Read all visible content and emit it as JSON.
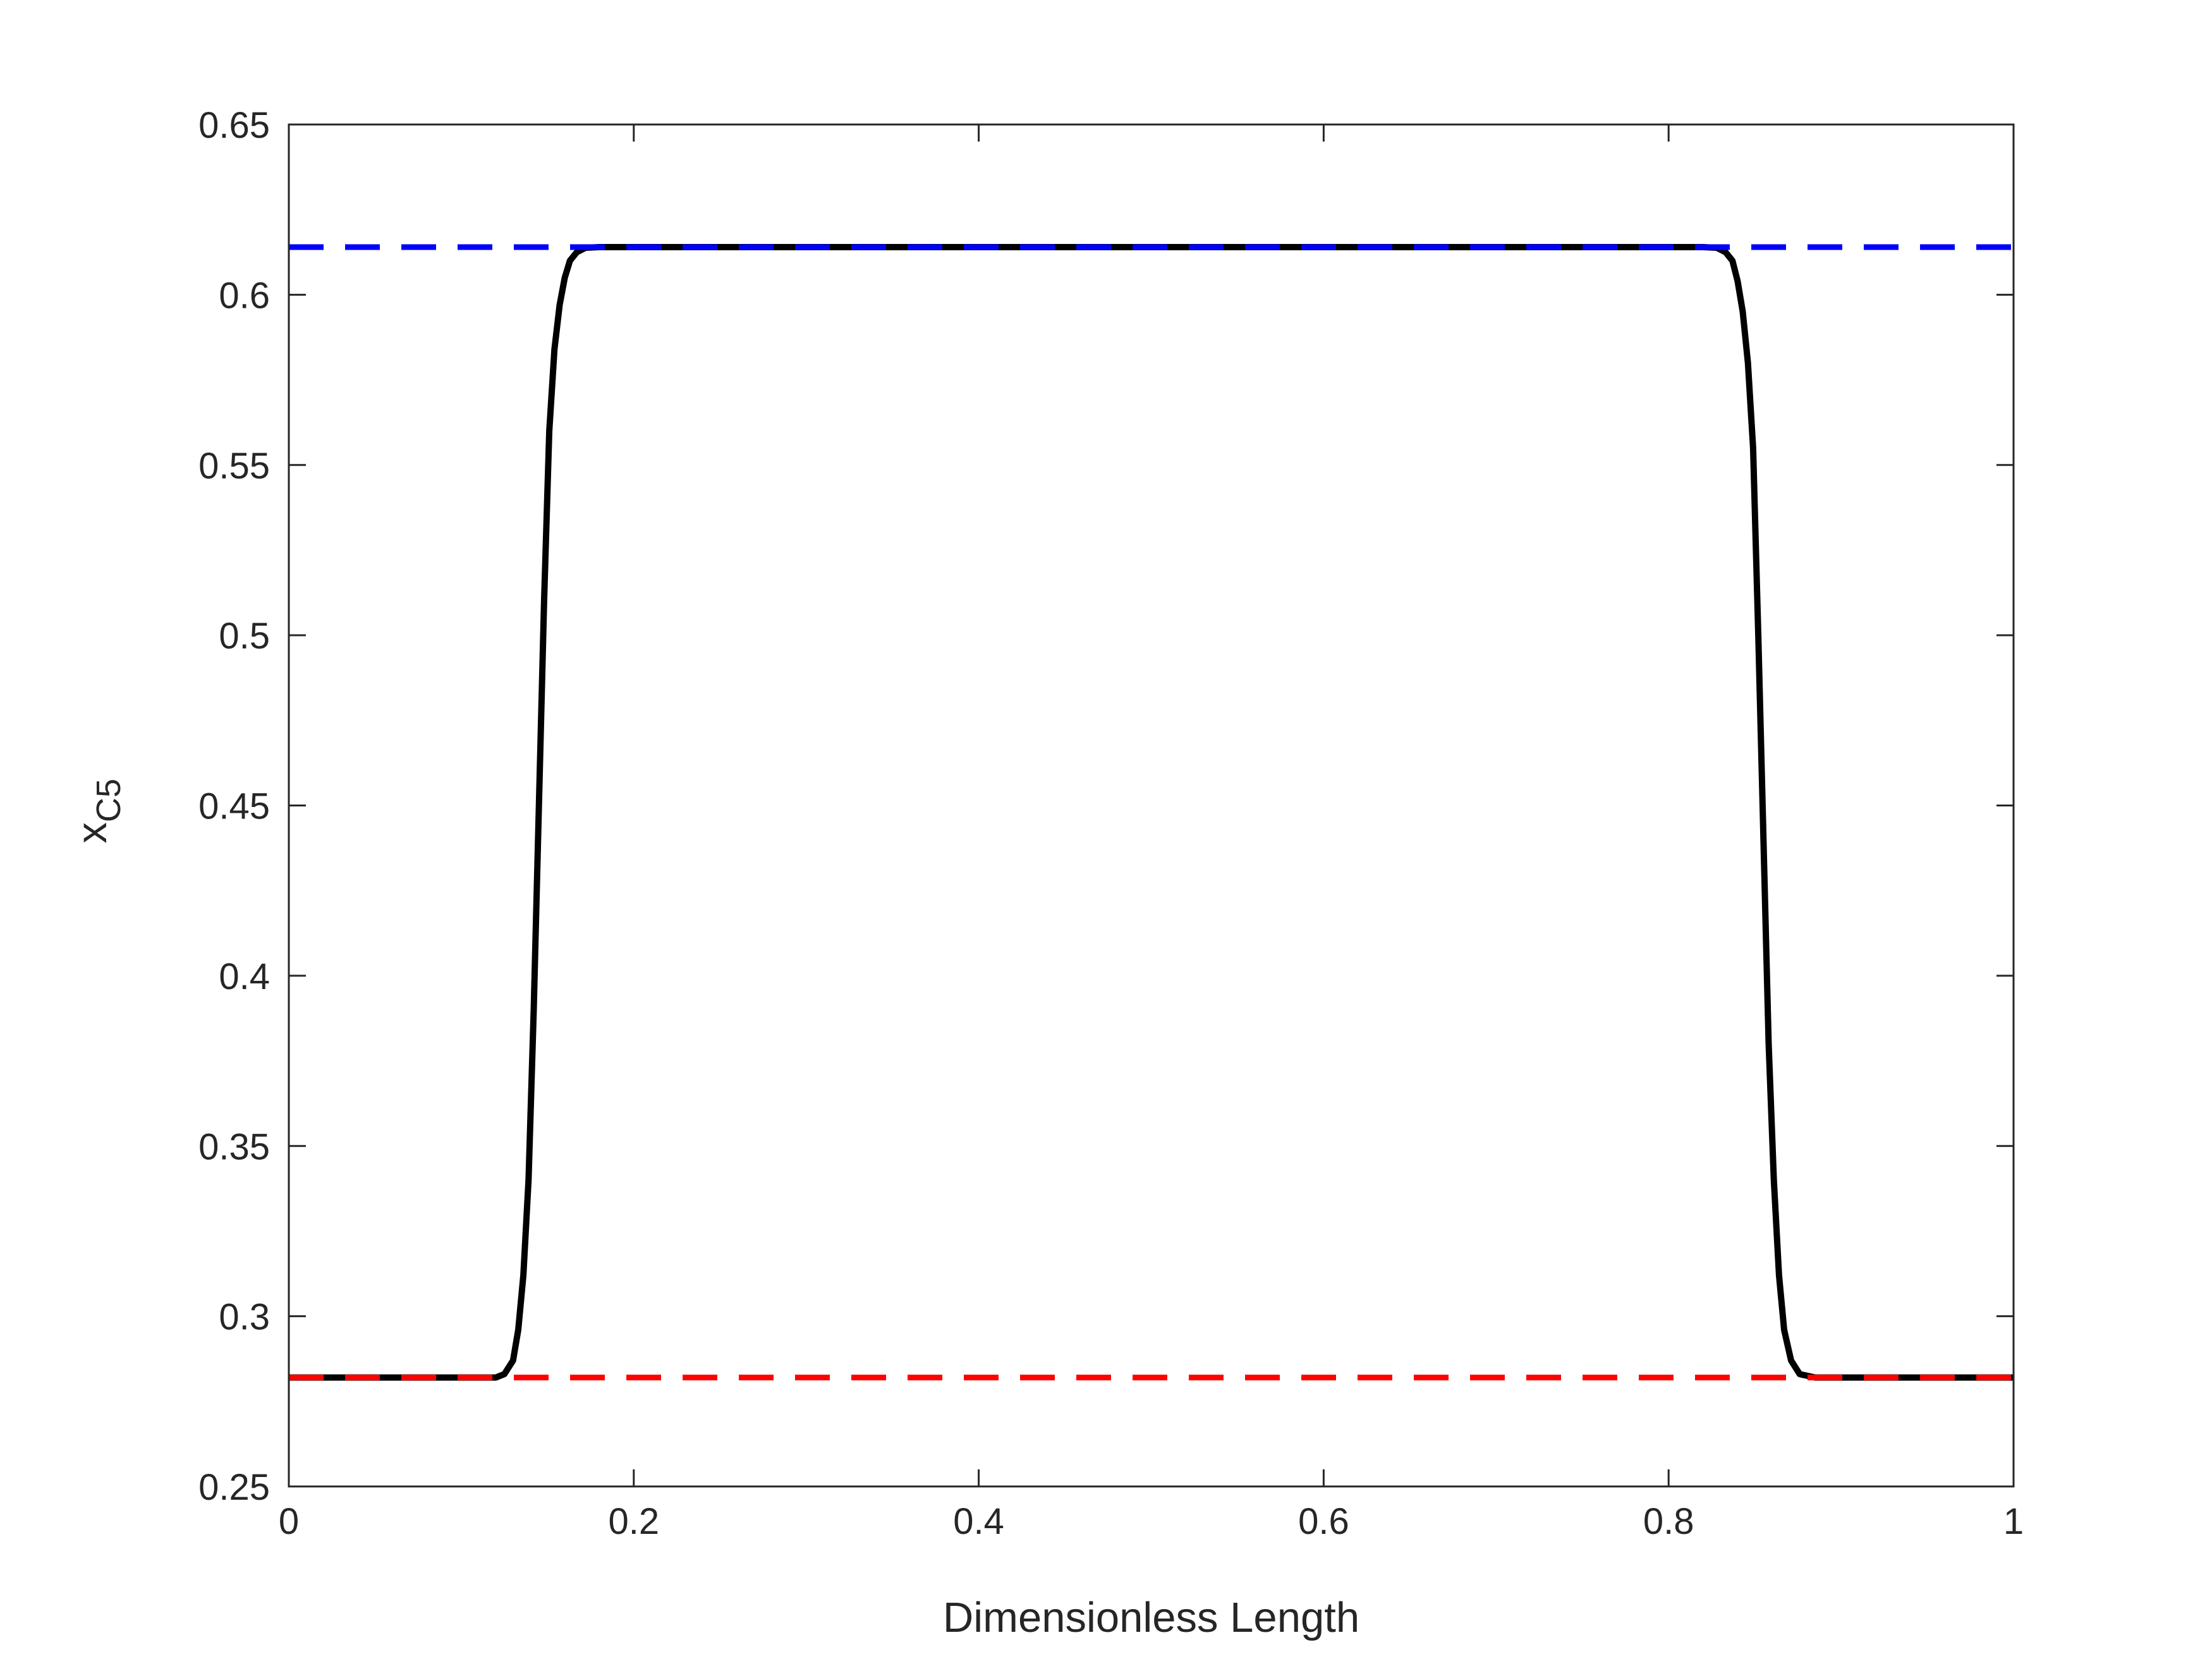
{
  "chart_data": {
    "type": "line",
    "xlabel": "Dimensionless Length",
    "ylabel": {
      "main": "x",
      "subscript": "C5"
    },
    "xlim": [
      0,
      1
    ],
    "ylim": [
      0.25,
      0.65
    ],
    "xticks": [
      0,
      0.2,
      0.4,
      0.6,
      0.8,
      1
    ],
    "xtick_labels": [
      "0",
      "0.2",
      "0.4",
      "0.6",
      "0.8",
      "1"
    ],
    "yticks": [
      0.25,
      0.3,
      0.35,
      0.4,
      0.45,
      0.5,
      0.55,
      0.6,
      0.65
    ],
    "ytick_labels": [
      "0.25",
      "0.3",
      "0.35",
      "0.4",
      "0.45",
      "0.5",
      "0.55",
      "0.6",
      "0.65"
    ],
    "grid": false,
    "box": true,
    "series": [
      {
        "style": "solid",
        "color": "#000000",
        "x": [
          0,
          0.12,
          0.125,
          0.13,
          0.133,
          0.136,
          0.139,
          0.142,
          0.145,
          0.148,
          0.151,
          0.154,
          0.157,
          0.16,
          0.163,
          0.167,
          0.172,
          0.18,
          0.2,
          0.5,
          0.8,
          0.82,
          0.828,
          0.833,
          0.837,
          0.84,
          0.843,
          0.846,
          0.849,
          0.852,
          0.855,
          0.858,
          0.861,
          0.864,
          0.867,
          0.871,
          0.876,
          0.885,
          1
        ],
        "y": [
          0.282,
          0.282,
          0.283,
          0.287,
          0.296,
          0.312,
          0.34,
          0.39,
          0.45,
          0.51,
          0.56,
          0.584,
          0.597,
          0.605,
          0.61,
          0.6125,
          0.6138,
          0.614,
          0.614,
          0.614,
          0.614,
          0.614,
          0.6138,
          0.6125,
          0.61,
          0.604,
          0.595,
          0.58,
          0.555,
          0.5,
          0.44,
          0.38,
          0.34,
          0.312,
          0.296,
          0.287,
          0.283,
          0.282,
          0.282
        ]
      },
      {
        "style": "dashed",
        "color": "#0000ff",
        "x": [
          0,
          1
        ],
        "y": [
          0.614,
          0.614
        ]
      },
      {
        "style": "dashed",
        "color": "#ff0000",
        "x": [
          0,
          1
        ],
        "y": [
          0.282,
          0.282
        ]
      }
    ]
  }
}
